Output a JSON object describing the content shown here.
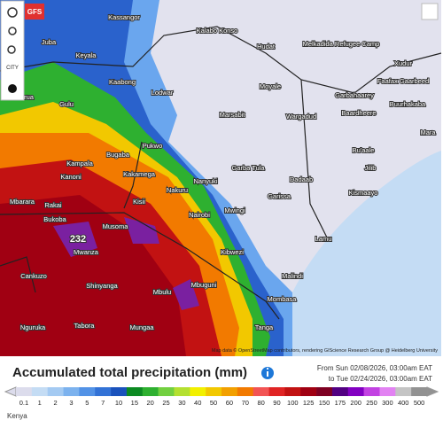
{
  "toolbar": {
    "model": "GFS",
    "city": "CITY"
  },
  "map": {
    "places": [
      "Kassangor",
      "Juba",
      "Kalabo Konso",
      "Hudat",
      "Melkadida Refugee Camp",
      "Keyala",
      "Kaabong",
      "Lodwar",
      "Arua",
      "Gulu",
      "Moyale",
      "Xudur",
      "Faafax Gaarbeed",
      "Garbahaarey",
      "Marsabit",
      "Wargadud",
      "Baardheere",
      "Buurhakaba",
      "Mara",
      "Pukwo",
      "Bugaba",
      "Kampala",
      "Kanoni",
      "Kakamega",
      "Garba Tula",
      "Bu'aale",
      "Jilib",
      "Dadaab",
      "Nanyuki",
      "Nakuru",
      "Kisii",
      "Mbarara",
      "Rakai",
      "Kismaayo",
      "Garissa",
      "Mwingi",
      "Nairobi",
      "Bukoba",
      "Musoma",
      "Mwanza",
      "Kibwezi",
      "Lamu",
      "Cankuzo",
      "Malindi",
      "Mbuguni",
      "Shinyanga",
      "Mbulu",
      "Mombasa",
      "Nguruka",
      "Tabora",
      "Mungaa",
      "Tanga"
    ],
    "max_label": "232",
    "attribution": "Map data © OpenStreetMap contributors, rendering GIScience Research Group @ Heidelberg University"
  },
  "legend": {
    "title": "Accumulated total precipitation (mm)",
    "from": "From Sun 02/08/2026, 03:00am EAT",
    "to": "to Tue 02/24/2026, 03:00am EAT",
    "items": [
      {
        "label": "0.1",
        "color": "#dcdcec"
      },
      {
        "label": "1",
        "color": "#c4dcf4"
      },
      {
        "label": "2",
        "color": "#a4caf2"
      },
      {
        "label": "3",
        "color": "#7cb2ee"
      },
      {
        "label": "5",
        "color": "#5292e6"
      },
      {
        "label": "7",
        "color": "#3272d6"
      },
      {
        "label": "10",
        "color": "#1a52bc"
      },
      {
        "label": "15",
        "color": "#0c8a22"
      },
      {
        "label": "20",
        "color": "#2eb030"
      },
      {
        "label": "25",
        "color": "#72d040"
      },
      {
        "label": "30",
        "color": "#b4e030"
      },
      {
        "label": "40",
        "color": "#f2f000"
      },
      {
        "label": "50",
        "color": "#f2c800"
      },
      {
        "label": "60",
        "color": "#f2a000"
      },
      {
        "label": "70",
        "color": "#f27a00"
      },
      {
        "label": "80",
        "color": "#f25454"
      },
      {
        "label": "90",
        "color": "#e02424"
      },
      {
        "label": "100",
        "color": "#c21212"
      },
      {
        "label": "125",
        "color": "#a00012"
      },
      {
        "label": "150",
        "color": "#7e0022"
      },
      {
        "label": "175",
        "color": "#520082"
      },
      {
        "label": "200",
        "color": "#8200c2"
      },
      {
        "label": "250",
        "color": "#c242e2"
      },
      {
        "label": "300",
        "color": "#e282f2"
      },
      {
        "label": "400",
        "color": "#c4c4c4"
      },
      {
        "label": "500",
        "color": "#929292"
      }
    ]
  },
  "footer": {
    "region": "Kenya"
  }
}
